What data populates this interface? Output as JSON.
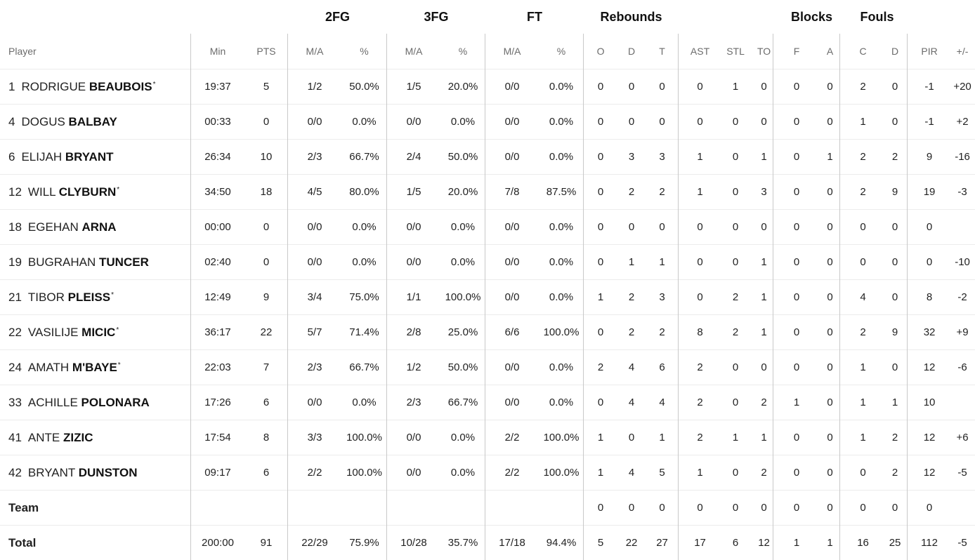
{
  "groups": {
    "fg2": "2FG",
    "fg3": "3FG",
    "ft": "FT",
    "rebounds": "Rebounds",
    "blocks": "Blocks",
    "fouls": "Fouls"
  },
  "headers": {
    "player": "Player",
    "min": "Min",
    "pts": "PTS",
    "fg2_ma": "M/A",
    "fg2_pct": "%",
    "fg3_ma": "M/A",
    "fg3_pct": "%",
    "ft_ma": "M/A",
    "ft_pct": "%",
    "reb_o": "O",
    "reb_d": "D",
    "reb_t": "T",
    "ast": "AST",
    "stl": "STL",
    "to": "TO",
    "blk_f": "F",
    "blk_a": "A",
    "foul_c": "C",
    "foul_d": "D",
    "pir": "PIR",
    "pm": "+/-"
  },
  "players": [
    {
      "num": "1",
      "first": "RODRIGUE",
      "last": "BEAUBOIS",
      "star": "*",
      "min": "19:37",
      "pts": "5",
      "fg2_ma": "1/2",
      "fg2_pct": "50.0%",
      "fg3_ma": "1/5",
      "fg3_pct": "20.0%",
      "ft_ma": "0/0",
      "ft_pct": "0.0%",
      "reb_o": "0",
      "reb_d": "0",
      "reb_t": "0",
      "ast": "0",
      "stl": "1",
      "to": "0",
      "blk_f": "0",
      "blk_a": "0",
      "foul_c": "2",
      "foul_d": "0",
      "pir": "-1",
      "pm": "+20"
    },
    {
      "num": "4",
      "first": "DOGUS",
      "last": "BALBAY",
      "star": "",
      "min": "00:33",
      "pts": "0",
      "fg2_ma": "0/0",
      "fg2_pct": "0.0%",
      "fg3_ma": "0/0",
      "fg3_pct": "0.0%",
      "ft_ma": "0/0",
      "ft_pct": "0.0%",
      "reb_o": "0",
      "reb_d": "0",
      "reb_t": "0",
      "ast": "0",
      "stl": "0",
      "to": "0",
      "blk_f": "0",
      "blk_a": "0",
      "foul_c": "1",
      "foul_d": "0",
      "pir": "-1",
      "pm": "+2"
    },
    {
      "num": "6",
      "first": "ELIJAH",
      "last": "BRYANT",
      "star": "",
      "min": "26:34",
      "pts": "10",
      "fg2_ma": "2/3",
      "fg2_pct": "66.7%",
      "fg3_ma": "2/4",
      "fg3_pct": "50.0%",
      "ft_ma": "0/0",
      "ft_pct": "0.0%",
      "reb_o": "0",
      "reb_d": "3",
      "reb_t": "3",
      "ast": "1",
      "stl": "0",
      "to": "1",
      "blk_f": "0",
      "blk_a": "1",
      "foul_c": "2",
      "foul_d": "2",
      "pir": "9",
      "pm": "-16"
    },
    {
      "num": "12",
      "first": "WILL",
      "last": "CLYBURN",
      "star": "*",
      "min": "34:50",
      "pts": "18",
      "fg2_ma": "4/5",
      "fg2_pct": "80.0%",
      "fg3_ma": "1/5",
      "fg3_pct": "20.0%",
      "ft_ma": "7/8",
      "ft_pct": "87.5%",
      "reb_o": "0",
      "reb_d": "2",
      "reb_t": "2",
      "ast": "1",
      "stl": "0",
      "to": "3",
      "blk_f": "0",
      "blk_a": "0",
      "foul_c": "2",
      "foul_d": "9",
      "pir": "19",
      "pm": "-3"
    },
    {
      "num": "18",
      "first": "EGEHAN",
      "last": "ARNA",
      "star": "",
      "min": "00:00",
      "pts": "0",
      "fg2_ma": "0/0",
      "fg2_pct": "0.0%",
      "fg3_ma": "0/0",
      "fg3_pct": "0.0%",
      "ft_ma": "0/0",
      "ft_pct": "0.0%",
      "reb_o": "0",
      "reb_d": "0",
      "reb_t": "0",
      "ast": "0",
      "stl": "0",
      "to": "0",
      "blk_f": "0",
      "blk_a": "0",
      "foul_c": "0",
      "foul_d": "0",
      "pir": "0",
      "pm": ""
    },
    {
      "num": "19",
      "first": "BUGRAHAN",
      "last": "TUNCER",
      "star": "",
      "min": "02:40",
      "pts": "0",
      "fg2_ma": "0/0",
      "fg2_pct": "0.0%",
      "fg3_ma": "0/0",
      "fg3_pct": "0.0%",
      "ft_ma": "0/0",
      "ft_pct": "0.0%",
      "reb_o": "0",
      "reb_d": "1",
      "reb_t": "1",
      "ast": "0",
      "stl": "0",
      "to": "1",
      "blk_f": "0",
      "blk_a": "0",
      "foul_c": "0",
      "foul_d": "0",
      "pir": "0",
      "pm": "-10"
    },
    {
      "num": "21",
      "first": "TIBOR",
      "last": "PLEISS",
      "star": "*",
      "min": "12:49",
      "pts": "9",
      "fg2_ma": "3/4",
      "fg2_pct": "75.0%",
      "fg3_ma": "1/1",
      "fg3_pct": "100.0%",
      "ft_ma": "0/0",
      "ft_pct": "0.0%",
      "reb_o": "1",
      "reb_d": "2",
      "reb_t": "3",
      "ast": "0",
      "stl": "2",
      "to": "1",
      "blk_f": "0",
      "blk_a": "0",
      "foul_c": "4",
      "foul_d": "0",
      "pir": "8",
      "pm": "-2"
    },
    {
      "num": "22",
      "first": "VASILIJE",
      "last": "MICIC",
      "star": "*",
      "min": "36:17",
      "pts": "22",
      "fg2_ma": "5/7",
      "fg2_pct": "71.4%",
      "fg3_ma": "2/8",
      "fg3_pct": "25.0%",
      "ft_ma": "6/6",
      "ft_pct": "100.0%",
      "reb_o": "0",
      "reb_d": "2",
      "reb_t": "2",
      "ast": "8",
      "stl": "2",
      "to": "1",
      "blk_f": "0",
      "blk_a": "0",
      "foul_c": "2",
      "foul_d": "9",
      "pir": "32",
      "pm": "+9"
    },
    {
      "num": "24",
      "first": "AMATH",
      "last": "M'BAYE",
      "star": "*",
      "min": "22:03",
      "pts": "7",
      "fg2_ma": "2/3",
      "fg2_pct": "66.7%",
      "fg3_ma": "1/2",
      "fg3_pct": "50.0%",
      "ft_ma": "0/0",
      "ft_pct": "0.0%",
      "reb_o": "2",
      "reb_d": "4",
      "reb_t": "6",
      "ast": "2",
      "stl": "0",
      "to": "0",
      "blk_f": "0",
      "blk_a": "0",
      "foul_c": "1",
      "foul_d": "0",
      "pir": "12",
      "pm": "-6"
    },
    {
      "num": "33",
      "first": "ACHILLE",
      "last": "POLONARA",
      "star": "",
      "min": "17:26",
      "pts": "6",
      "fg2_ma": "0/0",
      "fg2_pct": "0.0%",
      "fg3_ma": "2/3",
      "fg3_pct": "66.7%",
      "ft_ma": "0/0",
      "ft_pct": "0.0%",
      "reb_o": "0",
      "reb_d": "4",
      "reb_t": "4",
      "ast": "2",
      "stl": "0",
      "to": "2",
      "blk_f": "1",
      "blk_a": "0",
      "foul_c": "1",
      "foul_d": "1",
      "pir": "10",
      "pm": ""
    },
    {
      "num": "41",
      "first": "ANTE",
      "last": "ZIZIC",
      "star": "",
      "min": "17:54",
      "pts": "8",
      "fg2_ma": "3/3",
      "fg2_pct": "100.0%",
      "fg3_ma": "0/0",
      "fg3_pct": "0.0%",
      "ft_ma": "2/2",
      "ft_pct": "100.0%",
      "reb_o": "1",
      "reb_d": "0",
      "reb_t": "1",
      "ast": "2",
      "stl": "1",
      "to": "1",
      "blk_f": "0",
      "blk_a": "0",
      "foul_c": "1",
      "foul_d": "2",
      "pir": "12",
      "pm": "+6"
    },
    {
      "num": "42",
      "first": "BRYANT",
      "last": "DUNSTON",
      "star": "",
      "min": "09:17",
      "pts": "6",
      "fg2_ma": "2/2",
      "fg2_pct": "100.0%",
      "fg3_ma": "0/0",
      "fg3_pct": "0.0%",
      "ft_ma": "2/2",
      "ft_pct": "100.0%",
      "reb_o": "1",
      "reb_d": "4",
      "reb_t": "5",
      "ast": "1",
      "stl": "0",
      "to": "2",
      "blk_f": "0",
      "blk_a": "0",
      "foul_c": "0",
      "foul_d": "2",
      "pir": "12",
      "pm": "-5"
    }
  ],
  "team": {
    "label": "Team",
    "min": "",
    "pts": "",
    "fg2_ma": "",
    "fg2_pct": "",
    "fg3_ma": "",
    "fg3_pct": "",
    "ft_ma": "",
    "ft_pct": "",
    "reb_o": "0",
    "reb_d": "0",
    "reb_t": "0",
    "ast": "0",
    "stl": "0",
    "to": "0",
    "blk_f": "0",
    "blk_a": "0",
    "foul_c": "0",
    "foul_d": "0",
    "pir": "0",
    "pm": ""
  },
  "total": {
    "label": "Total",
    "min": "200:00",
    "pts": "91",
    "fg2_ma": "22/29",
    "fg2_pct": "75.9%",
    "fg3_ma": "10/28",
    "fg3_pct": "35.7%",
    "ft_ma": "17/18",
    "ft_pct": "94.4%",
    "reb_o": "5",
    "reb_d": "22",
    "reb_t": "27",
    "ast": "17",
    "stl": "6",
    "to": "12",
    "blk_f": "1",
    "blk_a": "1",
    "foul_c": "16",
    "foul_d": "25",
    "pir": "112",
    "pm": "-5"
  }
}
